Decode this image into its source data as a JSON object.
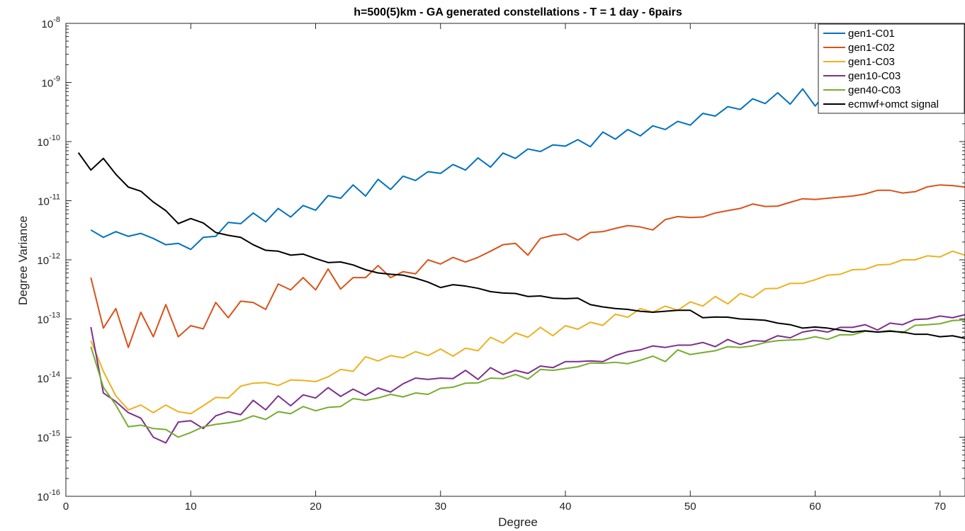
{
  "chart_data": {
    "type": "line",
    "title": "h=500(5)km - GA generated constellations - T = 1 day - 6pairs",
    "xlabel": "Degree",
    "ylabel": "Degree Variance",
    "xlim": [
      0,
      72
    ],
    "ylim": [
      1e-16,
      1e-08
    ],
    "yscale": "log",
    "grid": false,
    "legend_position": "top-right",
    "x_ticks": [
      0,
      10,
      20,
      30,
      40,
      50,
      60,
      70
    ],
    "x_tick_labels": [
      "0",
      "10",
      "20",
      "30",
      "40",
      "50",
      "60",
      "70"
    ],
    "y_ticks": [
      -16,
      -15,
      -14,
      -13,
      -12,
      -11,
      -10,
      -9,
      -8
    ],
    "y_tick_base": "10",
    "series": [
      {
        "name": "gen1-C01",
        "color": "#0072BD",
        "x": [
          2,
          3,
          4,
          5,
          6,
          7,
          8,
          9,
          10,
          11,
          12,
          13,
          14,
          15,
          16,
          17,
          18,
          19,
          20,
          21,
          22,
          23,
          24,
          25,
          26,
          27,
          28,
          29,
          30,
          31,
          32,
          33,
          34,
          35,
          36,
          37,
          38,
          39,
          40,
          41,
          42,
          43,
          44,
          45,
          46,
          47,
          48,
          49,
          50,
          51,
          52,
          53,
          54,
          55,
          56,
          57,
          58,
          59,
          60,
          61,
          62,
          63,
          64,
          65,
          66,
          67,
          68,
          69,
          70,
          71,
          72
        ],
        "y": [
          3.2e-12,
          2.4e-12,
          3e-12,
          2.5e-12,
          2.8e-12,
          2.3e-12,
          1.8e-12,
          1.9e-12,
          1.5e-12,
          2.4e-12,
          2.5e-12,
          4.3e-12,
          4.1e-12,
          6.2e-12,
          4.4e-12,
          7.4e-12,
          5.3e-12,
          8.3e-12,
          6.9e-12,
          1.22e-11,
          1.1e-11,
          1.85e-11,
          1.2e-11,
          2.3e-11,
          1.55e-11,
          2.6e-11,
          2.2e-11,
          3.1e-11,
          2.9e-11,
          4.1e-11,
          3.3e-11,
          5.3e-11,
          3.7e-11,
          6.4e-11,
          5.2e-11,
          7.5e-11,
          6.8e-11,
          8.8e-11,
          8.4e-11,
          1.08e-10,
          8.2e-11,
          1.45e-10,
          1.1e-10,
          1.6e-10,
          1.25e-10,
          1.85e-10,
          1.6e-10,
          2.2e-10,
          1.9e-10,
          3e-10,
          2.7e-10,
          3.9e-10,
          3.5e-10,
          5.3e-10,
          4.4e-10,
          6.7e-10,
          4.3e-10,
          7.8e-10,
          4e-10,
          7e-10,
          8.5e-10,
          9e-10,
          1e-09,
          1.1e-09,
          1.2e-09,
          1.25e-09,
          1.3e-09,
          1.35e-09,
          1.4e-09,
          1.45e-09,
          1.5e-09
        ]
      },
      {
        "name": "gen1-C02",
        "color": "#D95319",
        "x": [
          2,
          3,
          4,
          5,
          6,
          7,
          8,
          9,
          10,
          11,
          12,
          13,
          14,
          15,
          16,
          17,
          18,
          19,
          20,
          21,
          22,
          23,
          24,
          25,
          26,
          27,
          28,
          29,
          30,
          31,
          32,
          33,
          34,
          35,
          36,
          37,
          38,
          39,
          40,
          41,
          42,
          43,
          44,
          45,
          46,
          47,
          48,
          49,
          50,
          51,
          52,
          53,
          54,
          55,
          56,
          57,
          58,
          59,
          60,
          61,
          62,
          63,
          64,
          65,
          66,
          67,
          68,
          69,
          70,
          71,
          72
        ],
        "y": [
          5e-13,
          7e-14,
          1.5e-13,
          3.3e-14,
          1.3e-13,
          5e-14,
          1.75e-13,
          5e-14,
          7.7e-14,
          6.8e-14,
          1.9e-13,
          1.05e-13,
          2e-13,
          1.9e-13,
          1.45e-13,
          3.9e-13,
          3.1e-13,
          5e-13,
          3.1e-13,
          7e-13,
          3.2e-13,
          5e-13,
          5e-13,
          8e-13,
          5e-13,
          6.3e-13,
          5.8e-13,
          1e-12,
          8.5e-13,
          1.1e-12,
          9.2e-13,
          1.1e-12,
          1.4e-12,
          1.8e-12,
          1.9e-12,
          1.2e-12,
          2.3e-12,
          2.6e-12,
          2.75e-12,
          2.15e-12,
          2.9e-12,
          3e-12,
          3.4e-12,
          3.8e-12,
          3.6e-12,
          3.2e-12,
          4.8e-12,
          5.4e-12,
          5.2e-12,
          5.3e-12,
          6.2e-12,
          6.8e-12,
          7.4e-12,
          8.8e-12,
          8e-12,
          8.1e-12,
          9.4e-12,
          1.08e-11,
          1.05e-11,
          1.1e-11,
          1.15e-11,
          1.2e-11,
          1.3e-11,
          1.5e-11,
          1.5e-11,
          1.35e-11,
          1.42e-11,
          1.72e-11,
          1.85e-11,
          1.8e-11,
          1.7e-11
        ]
      },
      {
        "name": "gen1-C03",
        "color": "#EDB120",
        "x": [
          2,
          3,
          4,
          5,
          6,
          7,
          8,
          9,
          10,
          11,
          12,
          13,
          14,
          15,
          16,
          17,
          18,
          19,
          20,
          21,
          22,
          23,
          24,
          25,
          26,
          27,
          28,
          29,
          30,
          31,
          32,
          33,
          34,
          35,
          36,
          37,
          38,
          39,
          40,
          41,
          42,
          43,
          44,
          45,
          46,
          47,
          48,
          49,
          50,
          51,
          52,
          53,
          54,
          55,
          56,
          57,
          58,
          59,
          60,
          61,
          62,
          63,
          64,
          65,
          66,
          67,
          68,
          69,
          70,
          71,
          72
        ],
        "y": [
          4.3e-14,
          1.3e-14,
          5e-15,
          2.9e-15,
          3.5e-15,
          2.6e-15,
          3.5e-15,
          2.7e-15,
          2.5e-15,
          3.4e-15,
          4.7e-15,
          4.6e-15,
          7.3e-15,
          8.2e-15,
          8.4e-15,
          7.5e-15,
          9.3e-15,
          9.1e-15,
          8.7e-15,
          1.05e-14,
          1.4e-14,
          1.3e-14,
          2.3e-14,
          1.95e-14,
          2.4e-14,
          2.2e-14,
          2.8e-14,
          2.4e-14,
          3.1e-14,
          2.35e-14,
          3.2e-14,
          2.9e-14,
          4.9e-14,
          3.9e-14,
          5.8e-14,
          4.9e-14,
          7.2e-14,
          5.2e-14,
          7.7e-14,
          6.7e-14,
          8.8e-14,
          7.8e-14,
          1.2e-13,
          1.07e-13,
          1.5e-13,
          1.3e-13,
          1.65e-13,
          1.4e-13,
          1.95e-13,
          1.65e-13,
          2.4e-13,
          1.8e-13,
          2.7e-13,
          2.3e-13,
          3.25e-13,
          3.3e-13,
          4e-13,
          4e-13,
          4.6e-13,
          5.5e-13,
          5.7e-13,
          6.8e-13,
          6.9e-13,
          8.2e-13,
          8.4e-13,
          1e-12,
          1e-12,
          1.17e-12,
          1.12e-12,
          1.4e-12,
          1.2e-12
        ]
      },
      {
        "name": "gen10-C03",
        "color": "#7E2F8E",
        "x": [
          2,
          3,
          4,
          5,
          6,
          7,
          8,
          9,
          10,
          11,
          12,
          13,
          14,
          15,
          16,
          17,
          18,
          19,
          20,
          21,
          22,
          23,
          24,
          25,
          26,
          27,
          28,
          29,
          30,
          31,
          32,
          33,
          34,
          35,
          36,
          37,
          38,
          39,
          40,
          41,
          42,
          43,
          44,
          45,
          46,
          47,
          48,
          49,
          50,
          51,
          52,
          53,
          54,
          55,
          56,
          57,
          58,
          59,
          60,
          61,
          62,
          63,
          64,
          65,
          66,
          67,
          68,
          69,
          70,
          71,
          72
        ],
        "y": [
          7.3e-14,
          5.6e-15,
          4e-15,
          2.6e-15,
          2.1e-15,
          1e-15,
          8e-16,
          1.8e-15,
          1.9e-15,
          1.4e-15,
          2.3e-15,
          2.7e-15,
          2.4e-15,
          4.2e-15,
          2.9e-15,
          5e-15,
          3.4e-15,
          5.2e-15,
          4.6e-15,
          6.9e-15,
          4.9e-15,
          6.5e-15,
          5.1e-15,
          6.8e-15,
          5.8e-15,
          8e-15,
          1e-14,
          9.5e-15,
          1e-14,
          9.8e-15,
          1.35e-14,
          9.5e-15,
          1.5e-14,
          1.15e-14,
          1.35e-14,
          1.2e-14,
          1.6e-14,
          1.5e-14,
          1.9e-14,
          1.9e-14,
          1.95e-14,
          1.9e-14,
          2.4e-14,
          2.8e-14,
          3e-14,
          3.5e-14,
          3.3e-14,
          3.6e-14,
          3.6e-14,
          4e-14,
          3.4e-14,
          4.5e-14,
          3.7e-14,
          4.3e-14,
          4.2e-14,
          5.2e-14,
          4.8e-14,
          6e-14,
          6.5e-14,
          6e-14,
          7.2e-14,
          7.2e-14,
          8e-14,
          6.5e-14,
          8.5e-14,
          8e-14,
          9.8e-14,
          1e-13,
          1.12e-13,
          1.05e-13,
          1.18e-13
        ]
      },
      {
        "name": "gen40-C03",
        "color": "#77AC30",
        "x": [
          2,
          3,
          4,
          5,
          6,
          7,
          8,
          9,
          10,
          11,
          12,
          13,
          14,
          15,
          16,
          17,
          18,
          19,
          20,
          21,
          22,
          23,
          24,
          25,
          26,
          27,
          28,
          29,
          30,
          31,
          32,
          33,
          34,
          35,
          36,
          37,
          38,
          39,
          40,
          41,
          42,
          43,
          44,
          45,
          46,
          47,
          48,
          49,
          50,
          51,
          52,
          53,
          54,
          55,
          56,
          57,
          58,
          59,
          60,
          61,
          62,
          63,
          64,
          65,
          66,
          67,
          68,
          69,
          70,
          71,
          72
        ],
        "y": [
          3.4e-14,
          7e-15,
          3.5e-15,
          1.5e-15,
          1.6e-15,
          1.4e-15,
          1.35e-15,
          1e-15,
          1.2e-15,
          1.5e-15,
          1.65e-15,
          1.75e-15,
          1.9e-15,
          2.3e-15,
          2e-15,
          2.7e-15,
          2.5e-15,
          3.3e-15,
          2.8e-15,
          3.2e-15,
          3.3e-15,
          4.5e-15,
          4.2e-15,
          4.6e-15,
          5.3e-15,
          4.8e-15,
          5.6e-15,
          5.3e-15,
          6.7e-15,
          7e-15,
          8.2e-15,
          8.3e-15,
          1e-14,
          9.8e-15,
          1.15e-14,
          9.6e-15,
          1.4e-14,
          1.35e-14,
          1.45e-14,
          1.55e-14,
          1.8e-14,
          1.78e-14,
          1.85e-14,
          1.75e-14,
          2e-14,
          2.35e-14,
          1.9e-14,
          3e-14,
          2.5e-14,
          2.7e-14,
          2.9e-14,
          3.4e-14,
          3.3e-14,
          3.5e-14,
          4e-14,
          4.3e-14,
          4.4e-14,
          4.5e-14,
          5e-14,
          4.5e-14,
          5.4e-14,
          5.4e-14,
          6.2e-14,
          6e-14,
          6.4e-14,
          5.8e-14,
          7.8e-14,
          8e-14,
          8.3e-14,
          9.4e-14,
          9.6e-14
        ]
      },
      {
        "name": "ecmwf+omct signal",
        "color": "#000000",
        "x": [
          1,
          2,
          3,
          4,
          5,
          6,
          7,
          8,
          9,
          10,
          11,
          12,
          13,
          14,
          15,
          16,
          17,
          18,
          19,
          20,
          21,
          22,
          23,
          24,
          25,
          26,
          27,
          28,
          29,
          30,
          31,
          32,
          33,
          34,
          35,
          36,
          37,
          38,
          39,
          40,
          41,
          42,
          43,
          44,
          45,
          46,
          47,
          48,
          49,
          50,
          51,
          52,
          53,
          54,
          55,
          56,
          57,
          58,
          59,
          60,
          61,
          62,
          63,
          64,
          65,
          66,
          67,
          68,
          69,
          70,
          71,
          72
        ],
        "y": [
          6.5e-11,
          3.3e-11,
          5.2e-11,
          2.8e-11,
          1.7e-11,
          1.45e-11,
          9.5e-12,
          6.8e-12,
          4.1e-12,
          5e-12,
          4.2e-12,
          2.9e-12,
          2.6e-12,
          2.4e-12,
          1.8e-12,
          1.45e-12,
          1.4e-12,
          1.2e-12,
          1.25e-12,
          1.05e-12,
          9e-13,
          9.2e-13,
          8.2e-13,
          6.8e-13,
          6e-13,
          5.7e-13,
          5.5e-13,
          4.9e-13,
          4.2e-13,
          3.4e-13,
          3.8e-13,
          3.6e-13,
          3.3e-13,
          2.9e-13,
          2.75e-13,
          2.7e-13,
          2.4e-13,
          2.45e-13,
          2.25e-13,
          2.2e-13,
          2.25e-13,
          1.75e-13,
          1.6e-13,
          1.5e-13,
          1.45e-13,
          1.35e-13,
          1.3e-13,
          1.35e-13,
          1.4e-13,
          1.4e-13,
          1.05e-13,
          1.08e-13,
          1.07e-13,
          1e-13,
          9.8e-14,
          9.5e-14,
          8.5e-14,
          8e-14,
          7e-14,
          7.3e-14,
          7e-14,
          6.5e-14,
          6e-14,
          6.3e-14,
          6e-14,
          6.2e-14,
          6e-14,
          5.5e-14,
          5.5e-14,
          5e-14,
          5.2e-14,
          4.7e-14
        ]
      }
    ]
  }
}
